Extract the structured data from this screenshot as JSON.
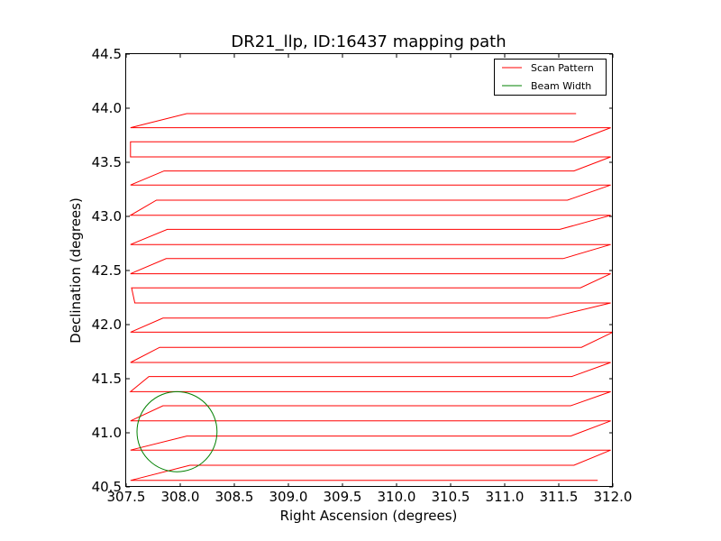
{
  "chart_data": {
    "type": "line",
    "title": "DR21_llp, ID:16437 mapping path",
    "xlabel": "Right Ascension (degrees)",
    "ylabel": "Declination (degrees)",
    "xlim": [
      307.5,
      312.0
    ],
    "ylim": [
      40.5,
      44.5
    ],
    "xticks": [
      307.5,
      308.0,
      308.5,
      309.0,
      309.5,
      310.0,
      310.5,
      311.0,
      311.5,
      312.0
    ],
    "xtick_labels": [
      "307.5",
      "308.0",
      "308.5",
      "309.0",
      "309.5",
      "310.0",
      "310.5",
      "311.0",
      "311.5",
      "312.0"
    ],
    "yticks": [
      40.5,
      41.0,
      41.5,
      42.0,
      42.5,
      43.0,
      43.5,
      44.0,
      44.5
    ],
    "ytick_labels": [
      "40.5",
      "41.0",
      "41.5",
      "42.0",
      "42.5",
      "43.0",
      "43.5",
      "44.0",
      "44.5"
    ],
    "grid": false,
    "legend_position": "top-right",
    "series": [
      {
        "name": "Scan Pattern",
        "color": "#ff0000",
        "x": [
          311.86,
          307.54,
          308.09,
          311.64,
          311.98,
          307.54,
          308.06,
          311.61,
          311.98,
          307.54,
          307.84,
          311.61,
          311.98,
          307.54,
          307.71,
          311.62,
          311.98,
          307.54,
          307.81,
          311.71,
          312.0,
          307.54,
          307.84,
          311.4,
          311.98,
          307.58,
          307.55,
          311.7,
          311.98,
          307.54,
          307.87,
          311.54,
          311.98,
          307.54,
          307.88,
          311.51,
          311.98,
          307.54,
          307.78,
          311.58,
          311.98,
          307.54,
          307.85,
          311.64,
          311.98,
          307.54,
          307.54,
          311.64,
          311.98,
          307.54,
          308.06,
          311.66
        ],
        "y": [
          40.56,
          40.56,
          40.7,
          40.7,
          40.84,
          40.84,
          40.97,
          40.97,
          41.11,
          41.11,
          41.25,
          41.25,
          41.38,
          41.38,
          41.52,
          41.52,
          41.65,
          41.65,
          41.79,
          41.79,
          41.93,
          41.93,
          42.06,
          42.06,
          42.2,
          42.2,
          42.34,
          42.34,
          42.47,
          42.47,
          42.61,
          42.61,
          42.74,
          42.74,
          42.88,
          42.88,
          43.01,
          43.01,
          43.15,
          43.15,
          43.29,
          43.29,
          43.42,
          43.42,
          43.55,
          43.55,
          43.69,
          43.69,
          43.82,
          43.82,
          43.95,
          43.95
        ]
      },
      {
        "name": "Beam Width",
        "color": "#008000",
        "shape": "circle",
        "center": [
          307.97,
          41.01
        ],
        "radius_deg": 0.37
      }
    ]
  }
}
